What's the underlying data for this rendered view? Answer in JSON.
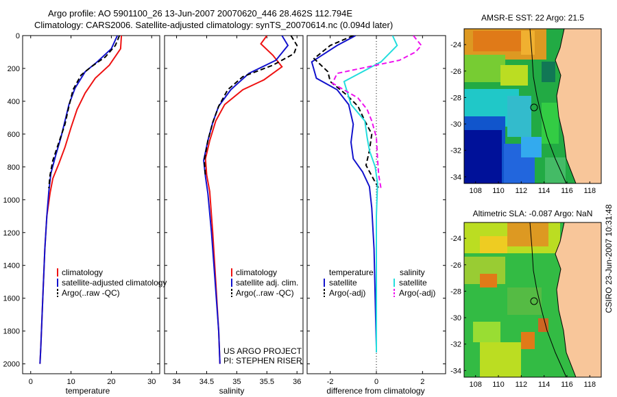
{
  "header": {
    "line1": "Argo profile: AO 5901100_26 13-Jun-2007 20070620_446 28.462S 112.794E",
    "line2": "Climatology: CARS2006. Satellite-adjusted climatology: synTS_20070614.nc (0.094d later)"
  },
  "colors": {
    "red": "#ee1111",
    "blue": "#1111cc",
    "black": "#000000",
    "cyan": "#22dddd",
    "magenta": "#ee11ee",
    "land": "#f8c69a"
  },
  "chart_data": [
    {
      "type": "line",
      "name": "temperature-profile",
      "xlabel": "temperature",
      "xlim": [
        -2,
        32
      ],
      "ylim": [
        0,
        2060
      ],
      "xticks": [
        0,
        10,
        20,
        30
      ],
      "yticks": [
        0,
        200,
        400,
        600,
        800,
        1000,
        1200,
        1400,
        1600,
        1800,
        2000
      ],
      "legend": [
        "climatology",
        "satellite-adjusted climatology",
        "Argo(..raw -QC)"
      ],
      "series": [
        {
          "name": "climatology",
          "color": "red",
          "dash": "",
          "points": [
            [
              22.5,
              0
            ],
            [
              22.3,
              80
            ],
            [
              19.5,
              180
            ],
            [
              16,
              260
            ],
            [
              13.5,
              350
            ],
            [
              11.5,
              450
            ],
            [
              10,
              560
            ],
            [
              8.5,
              680
            ],
            [
              7,
              780
            ],
            [
              5.5,
              870
            ],
            [
              4.8,
              960
            ],
            [
              4,
              1100
            ],
            [
              3.5,
              1300
            ],
            [
              3,
              1600
            ],
            [
              2.5,
              1900
            ],
            [
              2.3,
              2000
            ]
          ]
        },
        {
          "name": "satellite-adjusted climatology",
          "color": "blue",
          "dash": "",
          "points": [
            [
              21.5,
              0
            ],
            [
              20,
              80
            ],
            [
              16.5,
              160
            ],
            [
              13.5,
              220
            ],
            [
              11,
              320
            ],
            [
              9.5,
              420
            ],
            [
              8.5,
              520
            ],
            [
              7.5,
              620
            ],
            [
              6.2,
              730
            ],
            [
              5,
              840
            ],
            [
              4.5,
              950
            ],
            [
              4,
              1100
            ],
            [
              3.5,
              1300
            ],
            [
              3,
              1600
            ],
            [
              2.5,
              1900
            ],
            [
              2.3,
              2000
            ]
          ]
        },
        {
          "name": "Argo(..raw -QC)",
          "color": "black",
          "dash": "7,4",
          "points": [
            [
              22,
              0
            ],
            [
              21,
              60
            ],
            [
              18.5,
              130
            ],
            [
              15,
              190
            ],
            [
              12.5,
              240
            ],
            [
              10.5,
              330
            ],
            [
              9.5,
              430
            ],
            [
              8.5,
              540
            ],
            [
              7,
              650
            ],
            [
              5.5,
              760
            ],
            [
              4.8,
              850
            ],
            [
              4.5,
              930
            ]
          ]
        }
      ]
    },
    {
      "type": "line",
      "name": "salinity-profile",
      "xlabel": "salinity",
      "xlim": [
        33.8,
        36.1
      ],
      "ylim": [
        0,
        2060
      ],
      "xticks": [
        34,
        34.5,
        35,
        35.5,
        36
      ],
      "yticks": [
        0,
        200,
        400,
        600,
        800,
        1000,
        1200,
        1400,
        1600,
        1800,
        2000
      ],
      "legend": [
        "climatology",
        "satellite adj. clim.",
        "Argo(..raw -QC)"
      ],
      "annotations": [
        "US ARGO PROJECT",
        "PI: STEPHEN RISER"
      ],
      "series": [
        {
          "name": "climatology",
          "color": "red",
          "dash": "",
          "points": [
            [
              35.5,
              0
            ],
            [
              35.4,
              50
            ],
            [
              35.6,
              120
            ],
            [
              35.75,
              190
            ],
            [
              35.45,
              270
            ],
            [
              35.1,
              330
            ],
            [
              34.8,
              420
            ],
            [
              34.65,
              520
            ],
            [
              34.55,
              640
            ],
            [
              34.48,
              750
            ],
            [
              34.5,
              850
            ],
            [
              34.55,
              950
            ],
            [
              34.6,
              1200
            ],
            [
              34.65,
              1500
            ],
            [
              34.7,
              1800
            ],
            [
              34.72,
              2000
            ]
          ]
        },
        {
          "name": "satellite adj. clim.",
          "color": "blue",
          "dash": "",
          "points": [
            [
              35.75,
              0
            ],
            [
              35.85,
              60
            ],
            [
              35.65,
              150
            ],
            [
              35.2,
              230
            ],
            [
              34.9,
              330
            ],
            [
              34.7,
              430
            ],
            [
              34.6,
              530
            ],
            [
              34.52,
              640
            ],
            [
              34.45,
              760
            ],
            [
              34.48,
              860
            ],
            [
              34.52,
              960
            ],
            [
              34.58,
              1200
            ],
            [
              34.64,
              1500
            ],
            [
              34.7,
              1800
            ],
            [
              34.72,
              2000
            ]
          ]
        },
        {
          "name": "Argo(..raw -QC)",
          "color": "black",
          "dash": "7,4",
          "points": [
            [
              35.9,
              0
            ],
            [
              36.0,
              60
            ],
            [
              35.95,
              110
            ],
            [
              35.6,
              180
            ],
            [
              35.1,
              250
            ],
            [
              34.85,
              330
            ],
            [
              34.7,
              430
            ],
            [
              34.6,
              530
            ],
            [
              34.52,
              640
            ],
            [
              34.46,
              760
            ],
            [
              34.48,
              860
            ]
          ]
        }
      ]
    },
    {
      "type": "line",
      "name": "difference-profile",
      "xlabel": "difference from climatology",
      "xlim": [
        -3,
        3
      ],
      "ylim": [
        0,
        2060
      ],
      "xticks": [
        -2,
        0,
        2
      ],
      "yticks": [
        0,
        200,
        400,
        600,
        800,
        1000,
        1200,
        1400,
        1600,
        1800,
        2000
      ],
      "legend_titles": [
        "temperature",
        "salinity"
      ],
      "legend": [
        "satellite",
        "Argo(-adj)",
        "satellite",
        "Argo(-adj)"
      ],
      "series": [
        {
          "name": "temperature satellite",
          "color": "blue",
          "dash": "",
          "points": [
            [
              -0.9,
              0
            ],
            [
              -1.7,
              60
            ],
            [
              -2.8,
              160
            ],
            [
              -2.6,
              260
            ],
            [
              -1.7,
              330
            ],
            [
              -1.2,
              420
            ],
            [
              -1.0,
              540
            ],
            [
              -1.1,
              650
            ],
            [
              -1.0,
              750
            ],
            [
              -0.6,
              830
            ],
            [
              -0.3,
              920
            ],
            [
              -0.2,
              1050
            ],
            [
              -0.1,
              1300
            ],
            [
              -0.05,
              1600
            ],
            [
              0,
              1900
            ],
            [
              0,
              1930
            ]
          ]
        },
        {
          "name": "temperature Argo(-adj)",
          "color": "black",
          "dash": "7,4",
          "points": [
            [
              -1.0,
              0
            ],
            [
              -2.0,
              60
            ],
            [
              -2.7,
              140
            ],
            [
              -2.1,
              220
            ],
            [
              -2.0,
              280
            ],
            [
              -1.3,
              360
            ],
            [
              -0.8,
              430
            ],
            [
              -0.5,
              520
            ],
            [
              -0.2,
              600
            ],
            [
              -0.3,
              700
            ],
            [
              -0.45,
              790
            ],
            [
              -0.1,
              880
            ],
            [
              0.1,
              930
            ]
          ]
        },
        {
          "name": "salinity satellite",
          "color": "cyan",
          "dash": "",
          "points": [
            [
              0.7,
              0
            ],
            [
              0.9,
              60
            ],
            [
              0.2,
              160
            ],
            [
              -1.4,
              280
            ],
            [
              -1.1,
              420
            ],
            [
              -0.5,
              520
            ],
            [
              -0.4,
              620
            ],
            [
              -0.3,
              700
            ],
            [
              -0.05,
              800
            ],
            [
              0.05,
              900
            ],
            [
              0,
              1100
            ],
            [
              0,
              1500
            ],
            [
              0,
              1930
            ]
          ]
        },
        {
          "name": "salinity Argo(-adj)",
          "color": "magenta",
          "dash": "7,4",
          "points": [
            [
              1.6,
              0
            ],
            [
              1.95,
              60
            ],
            [
              1.7,
              100
            ],
            [
              1.0,
              150
            ],
            [
              -1.7,
              230
            ],
            [
              -1.9,
              290
            ],
            [
              -0.8,
              380
            ],
            [
              -0.4,
              450
            ],
            [
              -0.2,
              520
            ],
            [
              0.0,
              620
            ],
            [
              0.05,
              750
            ],
            [
              0.1,
              850
            ],
            [
              0.2,
              930
            ]
          ]
        }
      ]
    },
    {
      "type": "heatmap",
      "name": "sst-map",
      "title": "AMSR-E SST: 22 Argo: 21.5",
      "xticks": [
        108,
        110,
        112,
        114,
        116,
        118
      ],
      "yticks": [
        -24,
        -26,
        -28,
        -30,
        -32,
        -34
      ],
      "xlim": [
        107,
        119
      ],
      "ylim": [
        -34.5,
        -22.8
      ],
      "argo_position": [
        112.794,
        -28.462
      ]
    },
    {
      "type": "heatmap",
      "name": "sla-map",
      "title": "Altimetric SLA: -0.087 Argo: NaN",
      "xticks": [
        108,
        110,
        112,
        114,
        116,
        118
      ],
      "yticks": [
        -24,
        -26,
        -28,
        -30,
        -32,
        -34
      ],
      "xlim": [
        107,
        119
      ],
      "ylim": [
        -34.5,
        -22.8
      ],
      "argo_position": [
        112.794,
        -28.462
      ]
    }
  ],
  "credit": "CSIRO 23-Jun-2007 10:31:48"
}
